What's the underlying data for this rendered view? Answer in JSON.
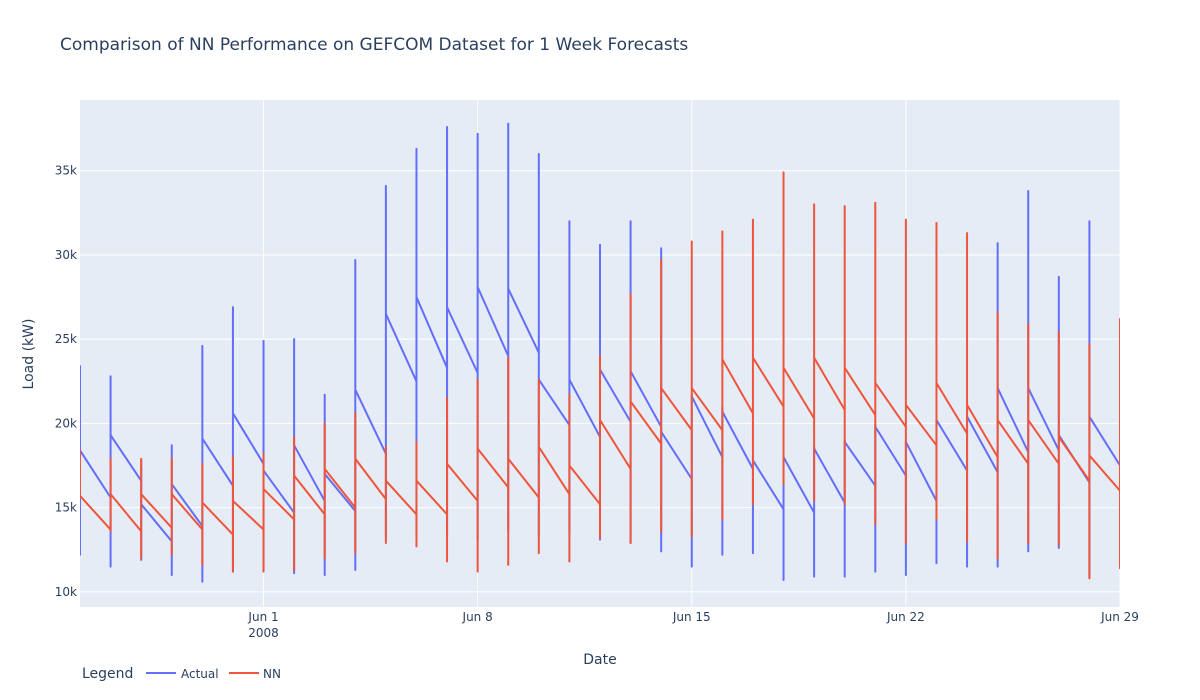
{
  "chart_data": {
    "type": "line",
    "title": "Comparison of NN Performance on GEFCOM Dataset for 1 Week Forecasts",
    "xlabel": "Date",
    "ylabel": "Load (kW)",
    "x_range": [
      "2008-05-26",
      "2008-06-29"
    ],
    "y_range": [
      9100,
      39200
    ],
    "grid": true,
    "legend": {
      "title": "Legend",
      "placement": "bottom-left",
      "orientation": "horizontal"
    },
    "x_ticks": [
      {
        "date": "2008-06-01",
        "label": "Jun 1",
        "sublabel": "2008"
      },
      {
        "date": "2008-06-08",
        "label": "Jun 8",
        "sublabel": ""
      },
      {
        "date": "2008-06-15",
        "label": "Jun 15",
        "sublabel": ""
      },
      {
        "date": "2008-06-22",
        "label": "Jun 22",
        "sublabel": ""
      },
      {
        "date": "2008-06-29",
        "label": "Jun 29",
        "sublabel": ""
      }
    ],
    "y_ticks": [
      {
        "value": 10000,
        "label": "10k"
      },
      {
        "value": 15000,
        "label": "15k"
      },
      {
        "value": 20000,
        "label": "20k"
      },
      {
        "value": 25000,
        "label": "25k"
      },
      {
        "value": 30000,
        "label": "30k"
      },
      {
        "value": 35000,
        "label": "35k"
      }
    ],
    "series": [
      {
        "name": "Actual",
        "color": "#636efa",
        "daily": [
          {
            "date": "2008-05-26",
            "peak": 23400,
            "low": 12200,
            "start": 18400,
            "end": 15600
          },
          {
            "date": "2008-05-27",
            "peak": 22800,
            "low": 11500,
            "start": 19300,
            "end": 16600
          },
          {
            "date": "2008-05-28",
            "peak": 17800,
            "low": 11900,
            "start": 15200,
            "end": 13000
          },
          {
            "date": "2008-05-29",
            "peak": 18700,
            "low": 11000,
            "start": 16400,
            "end": 13900
          },
          {
            "date": "2008-05-30",
            "peak": 24600,
            "low": 10600,
            "start": 19100,
            "end": 16300
          },
          {
            "date": "2008-05-31",
            "peak": 26900,
            "low": 11200,
            "start": 20600,
            "end": 17600
          },
          {
            "date": "2008-06-01",
            "peak": 24900,
            "low": 11300,
            "start": 17200,
            "end": 14700
          },
          {
            "date": "2008-06-02",
            "peak": 25000,
            "low": 11100,
            "start": 18700,
            "end": 15400
          },
          {
            "date": "2008-06-03",
            "peak": 21700,
            "low": 11000,
            "start": 17000,
            "end": 14800
          },
          {
            "date": "2008-06-04",
            "peak": 29700,
            "low": 11300,
            "start": 22000,
            "end": 18200
          },
          {
            "date": "2008-06-05",
            "peak": 34100,
            "low": 13300,
            "start": 26500,
            "end": 22500
          },
          {
            "date": "2008-06-06",
            "peak": 36300,
            "low": 13400,
            "start": 27500,
            "end": 23300
          },
          {
            "date": "2008-06-07",
            "peak": 37600,
            "low": 13300,
            "start": 26900,
            "end": 23000
          },
          {
            "date": "2008-06-08",
            "peak": 37200,
            "low": 13100,
            "start": 28100,
            "end": 24000
          },
          {
            "date": "2008-06-09",
            "peak": 37800,
            "low": 13600,
            "start": 28000,
            "end": 24200
          },
          {
            "date": "2008-06-10",
            "peak": 36000,
            "low": 13300,
            "start": 22600,
            "end": 19900
          },
          {
            "date": "2008-06-11",
            "peak": 32000,
            "low": 13500,
            "start": 22600,
            "end": 19200
          },
          {
            "date": "2008-06-12",
            "peak": 30600,
            "low": 13100,
            "start": 23200,
            "end": 20100
          },
          {
            "date": "2008-06-13",
            "peak": 32000,
            "low": 12900,
            "start": 23100,
            "end": 19800
          },
          {
            "date": "2008-06-14",
            "peak": 30400,
            "low": 12400,
            "start": 19500,
            "end": 16700
          },
          {
            "date": "2008-06-15",
            "peak": 21700,
            "low": 11500,
            "start": 21600,
            "end": 18000
          },
          {
            "date": "2008-06-16",
            "peak": 21000,
            "low": 12200,
            "start": 20700,
            "end": 17300
          },
          {
            "date": "2008-06-17",
            "peak": 18000,
            "low": 12300,
            "start": 17800,
            "end": 14900
          },
          {
            "date": "2008-06-18",
            "peak": 18100,
            "low": 10700,
            "start": 18000,
            "end": 14700
          },
          {
            "date": "2008-06-19",
            "peak": 18600,
            "low": 10900,
            "start": 18500,
            "end": 15300
          },
          {
            "date": "2008-06-20",
            "peak": 19000,
            "low": 10900,
            "start": 18900,
            "end": 16300
          },
          {
            "date": "2008-06-21",
            "peak": 19900,
            "low": 11200,
            "start": 19800,
            "end": 16900
          },
          {
            "date": "2008-06-22",
            "peak": 19000,
            "low": 11000,
            "start": 18900,
            "end": 15400
          },
          {
            "date": "2008-06-23",
            "peak": 20200,
            "low": 11700,
            "start": 20200,
            "end": 17200
          },
          {
            "date": "2008-06-24",
            "peak": 20500,
            "low": 11500,
            "start": 20400,
            "end": 17100
          },
          {
            "date": "2008-06-25",
            "peak": 30700,
            "low": 11500,
            "start": 22100,
            "end": 18300
          },
          {
            "date": "2008-06-26",
            "peak": 33800,
            "low": 12400,
            "start": 22100,
            "end": 18400
          },
          {
            "date": "2008-06-27",
            "peak": 28700,
            "low": 12600,
            "start": 19300,
            "end": 16500
          },
          {
            "date": "2008-06-28",
            "peak": 32000,
            "low": 10900,
            "start": 20400,
            "end": 17500
          }
        ]
      },
      {
        "name": "NN",
        "color": "#ef553b",
        "daily": [
          {
            "date": "2008-05-26",
            "peak": 18400,
            "low": 15600,
            "start": 15700,
            "end": 13700
          },
          {
            "date": "2008-05-27",
            "peak": 17900,
            "low": 13600,
            "start": 15800,
            "end": 13600
          },
          {
            "date": "2008-05-28",
            "peak": 17900,
            "low": 12000,
            "start": 15800,
            "end": 13800
          },
          {
            "date": "2008-05-29",
            "peak": 17900,
            "low": 12200,
            "start": 15800,
            "end": 13700
          },
          {
            "date": "2008-05-30",
            "peak": 17600,
            "low": 11600,
            "start": 15300,
            "end": 13400
          },
          {
            "date": "2008-05-31",
            "peak": 18000,
            "low": 11200,
            "start": 15400,
            "end": 13700
          },
          {
            "date": "2008-06-01",
            "peak": 18200,
            "low": 11200,
            "start": 16100,
            "end": 14300
          },
          {
            "date": "2008-06-02",
            "peak": 19200,
            "low": 11300,
            "start": 16900,
            "end": 14600
          },
          {
            "date": "2008-06-03",
            "peak": 20000,
            "low": 12000,
            "start": 17300,
            "end": 15000
          },
          {
            "date": "2008-06-04",
            "peak": 20600,
            "low": 12300,
            "start": 17900,
            "end": 15500
          },
          {
            "date": "2008-06-05",
            "peak": 18600,
            "low": 12900,
            "start": 16600,
            "end": 14600
          },
          {
            "date": "2008-06-06",
            "peak": 18900,
            "low": 12700,
            "start": 16600,
            "end": 14600
          },
          {
            "date": "2008-06-07",
            "peak": 21500,
            "low": 11800,
            "start": 17600,
            "end": 15400
          },
          {
            "date": "2008-06-08",
            "peak": 22600,
            "low": 11200,
            "start": 18500,
            "end": 16200
          },
          {
            "date": "2008-06-09",
            "peak": 23900,
            "low": 11600,
            "start": 17900,
            "end": 15600
          },
          {
            "date": "2008-06-10",
            "peak": 22600,
            "low": 12300,
            "start": 18600,
            "end": 15800
          },
          {
            "date": "2008-06-11",
            "peak": 21700,
            "low": 11800,
            "start": 17500,
            "end": 15200
          },
          {
            "date": "2008-06-12",
            "peak": 24000,
            "low": 13200,
            "start": 20200,
            "end": 17300
          },
          {
            "date": "2008-06-13",
            "peak": 27700,
            "low": 12900,
            "start": 21300,
            "end": 18800
          },
          {
            "date": "2008-06-14",
            "peak": 29700,
            "low": 13600,
            "start": 22100,
            "end": 19600
          },
          {
            "date": "2008-06-15",
            "peak": 30800,
            "low": 13300,
            "start": 22100,
            "end": 19600
          },
          {
            "date": "2008-06-16",
            "peak": 31400,
            "low": 14300,
            "start": 23800,
            "end": 20600
          },
          {
            "date": "2008-06-17",
            "peak": 32100,
            "low": 15200,
            "start": 23900,
            "end": 21000
          },
          {
            "date": "2008-06-18",
            "peak": 34900,
            "low": 16400,
            "start": 23300,
            "end": 20300
          },
          {
            "date": "2008-06-19",
            "peak": 33000,
            "low": 15400,
            "start": 23900,
            "end": 20800
          },
          {
            "date": "2008-06-20",
            "peak": 32900,
            "low": 15200,
            "start": 23300,
            "end": 20500
          },
          {
            "date": "2008-06-21",
            "peak": 33100,
            "low": 14000,
            "start": 22400,
            "end": 19800
          },
          {
            "date": "2008-06-22",
            "peak": 32100,
            "low": 12900,
            "start": 21100,
            "end": 18700
          },
          {
            "date": "2008-06-23",
            "peak": 31900,
            "low": 14300,
            "start": 22400,
            "end": 19400
          },
          {
            "date": "2008-06-24",
            "peak": 31300,
            "low": 13000,
            "start": 21100,
            "end": 18000
          },
          {
            "date": "2008-06-25",
            "peak": 26600,
            "low": 12000,
            "start": 20200,
            "end": 17600
          },
          {
            "date": "2008-06-26",
            "peak": 25900,
            "low": 12900,
            "start": 20200,
            "end": 17600
          },
          {
            "date": "2008-06-27",
            "peak": 25400,
            "low": 12800,
            "start": 19200,
            "end": 16600
          },
          {
            "date": "2008-06-28",
            "peak": 24700,
            "low": 10800,
            "start": 18100,
            "end": 16000
          },
          {
            "date": "2008-06-29",
            "peak": 26200,
            "low": 11400,
            "start": null,
            "end": null
          }
        ]
      }
    ]
  }
}
